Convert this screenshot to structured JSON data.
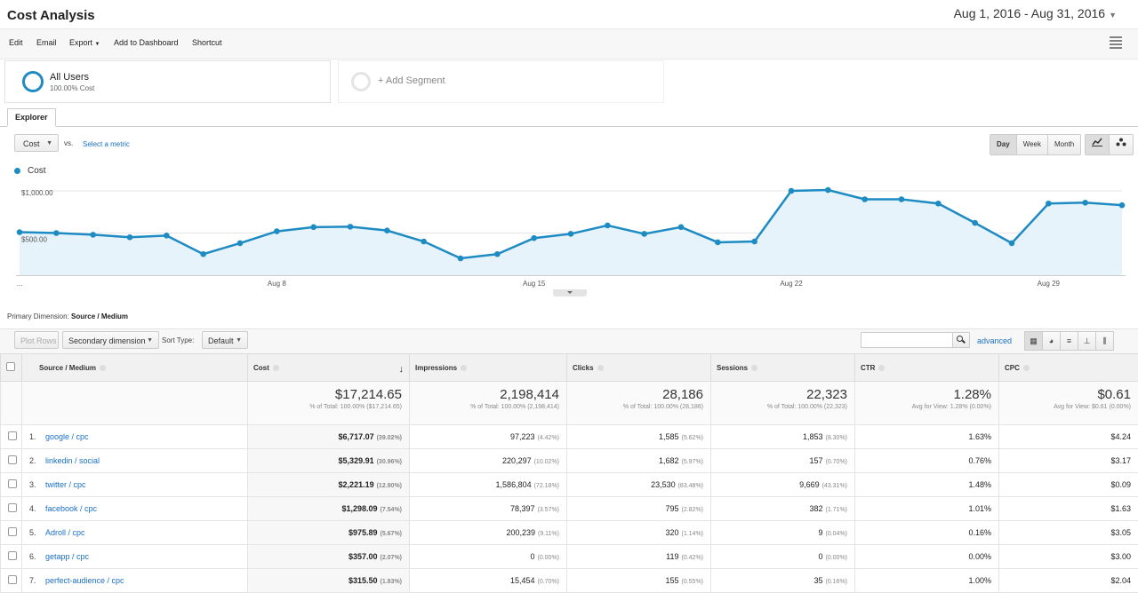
{
  "header": {
    "title": "Cost Analysis",
    "date_range": "Aug 1, 2016 - Aug 31, 2016"
  },
  "toolbar": {
    "edit": "Edit",
    "email": "Email",
    "export": "Export",
    "add_to_dashboard": "Add to Dashboard",
    "shortcut": "Shortcut",
    "grid_icon": "qr-grid-icon"
  },
  "segments": {
    "active": {
      "name": "All Users",
      "sub": "100.00% Cost"
    },
    "add": "+ Add Segment"
  },
  "tabs": {
    "explorer": "Explorer"
  },
  "chart_controls": {
    "metric": "Cost",
    "vs": "vs.",
    "select_metric": "Select a metric",
    "periods": [
      "Day",
      "Week",
      "Month"
    ],
    "selected_period": "Day"
  },
  "chart_data": {
    "type": "line",
    "series": [
      {
        "name": "Cost",
        "color": "#1e8bc3",
        "values": [
          510,
          500,
          480,
          450,
          470,
          250,
          380,
          520,
          570,
          575,
          530,
          400,
          200,
          250,
          440,
          490,
          590,
          490,
          570,
          390,
          400,
          1000,
          1010,
          900,
          900,
          850,
          620,
          380,
          850,
          860,
          830
        ]
      }
    ],
    "x": [
      1,
      2,
      3,
      4,
      5,
      6,
      7,
      8,
      9,
      10,
      11,
      12,
      13,
      14,
      15,
      16,
      17,
      18,
      19,
      20,
      21,
      22,
      23,
      24,
      25,
      26,
      27,
      28,
      29,
      30,
      31
    ],
    "x_ticks": [
      "...",
      "Aug 8",
      "Aug 15",
      "Aug 22",
      "Aug 29"
    ],
    "y_ticks": [
      "$1,000.00",
      "$500.00"
    ],
    "ylim": [
      0,
      1000
    ],
    "area_fill": "#e6f3fa"
  },
  "table_controls": {
    "primary_dimension_label": "Primary Dimension:",
    "primary_dimension": "Source / Medium",
    "plot_rows": "Plot Rows",
    "secondary_dimension": "Secondary dimension",
    "sort_type_label": "Sort Type:",
    "sort_type": "Default",
    "advanced": "advanced"
  },
  "table": {
    "headers": [
      "Source / Medium",
      "Cost",
      "Impressions",
      "Clicks",
      "Sessions",
      "CTR",
      "CPC"
    ],
    "totals": [
      {
        "value": "$17,214.65",
        "sub": "% of Total: 100.00% ($17,214.65)"
      },
      {
        "value": "2,198,414",
        "sub": "% of Total: 100.00% (2,198,414)"
      },
      {
        "value": "28,186",
        "sub": "% of Total: 100.00% (28,186)"
      },
      {
        "value": "22,323",
        "sub": "% of Total: 100.00% (22,323)"
      },
      {
        "value": "1.28%",
        "sub": "Avg for View: 1.28% (0.00%)"
      },
      {
        "value": "$0.61",
        "sub": "Avg for View: $0.61 (0.00%)"
      }
    ],
    "rows": [
      {
        "idx": "1.",
        "source": "google / cpc",
        "cost": "$6,717.07",
        "cost_pct": "(39.02%)",
        "impr": "97,223",
        "impr_pct": "(4.42%)",
        "clicks": "1,585",
        "clicks_pct": "(5.62%)",
        "sessions": "1,853",
        "sessions_pct": "(8.30%)",
        "ctr": "1.63%",
        "cpc": "$4.24"
      },
      {
        "idx": "2.",
        "source": "linkedin / social",
        "cost": "$5,329.91",
        "cost_pct": "(30.96%)",
        "impr": "220,297",
        "impr_pct": "(10.02%)",
        "clicks": "1,682",
        "clicks_pct": "(5.97%)",
        "sessions": "157",
        "sessions_pct": "(0.70%)",
        "ctr": "0.76%",
        "cpc": "$3.17"
      },
      {
        "idx": "3.",
        "source": "twitter / cpc",
        "cost": "$2,221.19",
        "cost_pct": "(12.90%)",
        "impr": "1,586,804",
        "impr_pct": "(72.18%)",
        "clicks": "23,530",
        "clicks_pct": "(83.48%)",
        "sessions": "9,669",
        "sessions_pct": "(43.31%)",
        "ctr": "1.48%",
        "cpc": "$0.09"
      },
      {
        "idx": "4.",
        "source": "facebook / cpc",
        "cost": "$1,298.09",
        "cost_pct": "(7.54%)",
        "impr": "78,397",
        "impr_pct": "(3.57%)",
        "clicks": "795",
        "clicks_pct": "(2.82%)",
        "sessions": "382",
        "sessions_pct": "(1.71%)",
        "ctr": "1.01%",
        "cpc": "$1.63"
      },
      {
        "idx": "5.",
        "source": "Adroll / cpc",
        "cost": "$975.89",
        "cost_pct": "(5.67%)",
        "impr": "200,239",
        "impr_pct": "(9.11%)",
        "clicks": "320",
        "clicks_pct": "(1.14%)",
        "sessions": "9",
        "sessions_pct": "(0.04%)",
        "ctr": "0.16%",
        "cpc": "$3.05"
      },
      {
        "idx": "6.",
        "source": "getapp / cpc",
        "cost": "$357.00",
        "cost_pct": "(2.07%)",
        "impr": "0",
        "impr_pct": "(0.00%)",
        "clicks": "119",
        "clicks_pct": "(0.42%)",
        "sessions": "0",
        "sessions_pct": "(0.00%)",
        "ctr": "0.00%",
        "cpc": "$3.00"
      },
      {
        "idx": "7.",
        "source": "perfect-audience / cpc",
        "cost": "$315.50",
        "cost_pct": "(1.83%)",
        "impr": "15,454",
        "impr_pct": "(0.70%)",
        "clicks": "155",
        "clicks_pct": "(0.55%)",
        "sessions": "35",
        "sessions_pct": "(0.16%)",
        "ctr": "1.00%",
        "cpc": "$2.04"
      }
    ]
  }
}
